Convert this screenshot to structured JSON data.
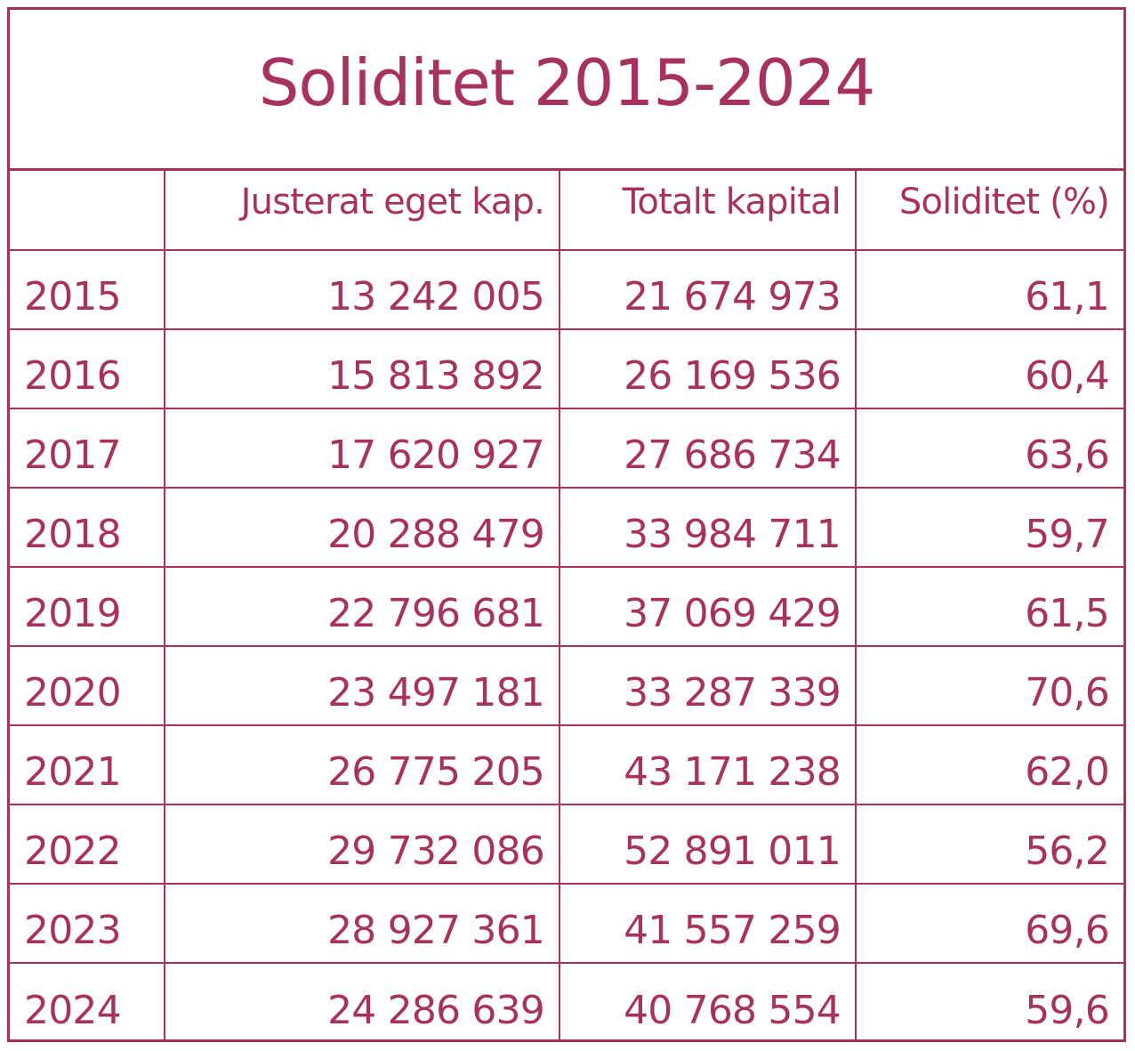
{
  "title": "Soliditet 2015-2024",
  "columns": [
    "",
    "Justerat eget kap.",
    "Totalt kapital",
    "Soliditet (%)"
  ],
  "rows": [
    {
      "year": "2015",
      "equity": "13 242 005",
      "total": "21 674 973",
      "solidity": "61,1"
    },
    {
      "year": "2016",
      "equity": "15 813 892",
      "total": "26 169 536",
      "solidity": "60,4"
    },
    {
      "year": "2017",
      "equity": "17 620 927",
      "total": "27 686 734",
      "solidity": "63,6"
    },
    {
      "year": "2018",
      "equity": "20 288 479",
      "total": "33 984 711",
      "solidity": "59,7"
    },
    {
      "year": "2019",
      "equity": "22 796 681",
      "total": "37 069 429",
      "solidity": "61,5"
    },
    {
      "year": "2020",
      "equity": "23 497 181",
      "total": "33 287 339",
      "solidity": "70,6"
    },
    {
      "year": "2021",
      "equity": "26 775 205",
      "total": "43 171 238",
      "solidity": "62,0"
    },
    {
      "year": "2022",
      "equity": "29 732 086",
      "total": "52 891 011",
      "solidity": "56,2"
    },
    {
      "year": "2023",
      "equity": "28 927 361",
      "total": "41 557 259",
      "solidity": "69,6"
    },
    {
      "year": "2024",
      "equity": "24 286 639",
      "total": "40 768 554",
      "solidity": "59,6"
    }
  ],
  "colors": {
    "accent": "#a8325f",
    "background": "#ffffff"
  }
}
